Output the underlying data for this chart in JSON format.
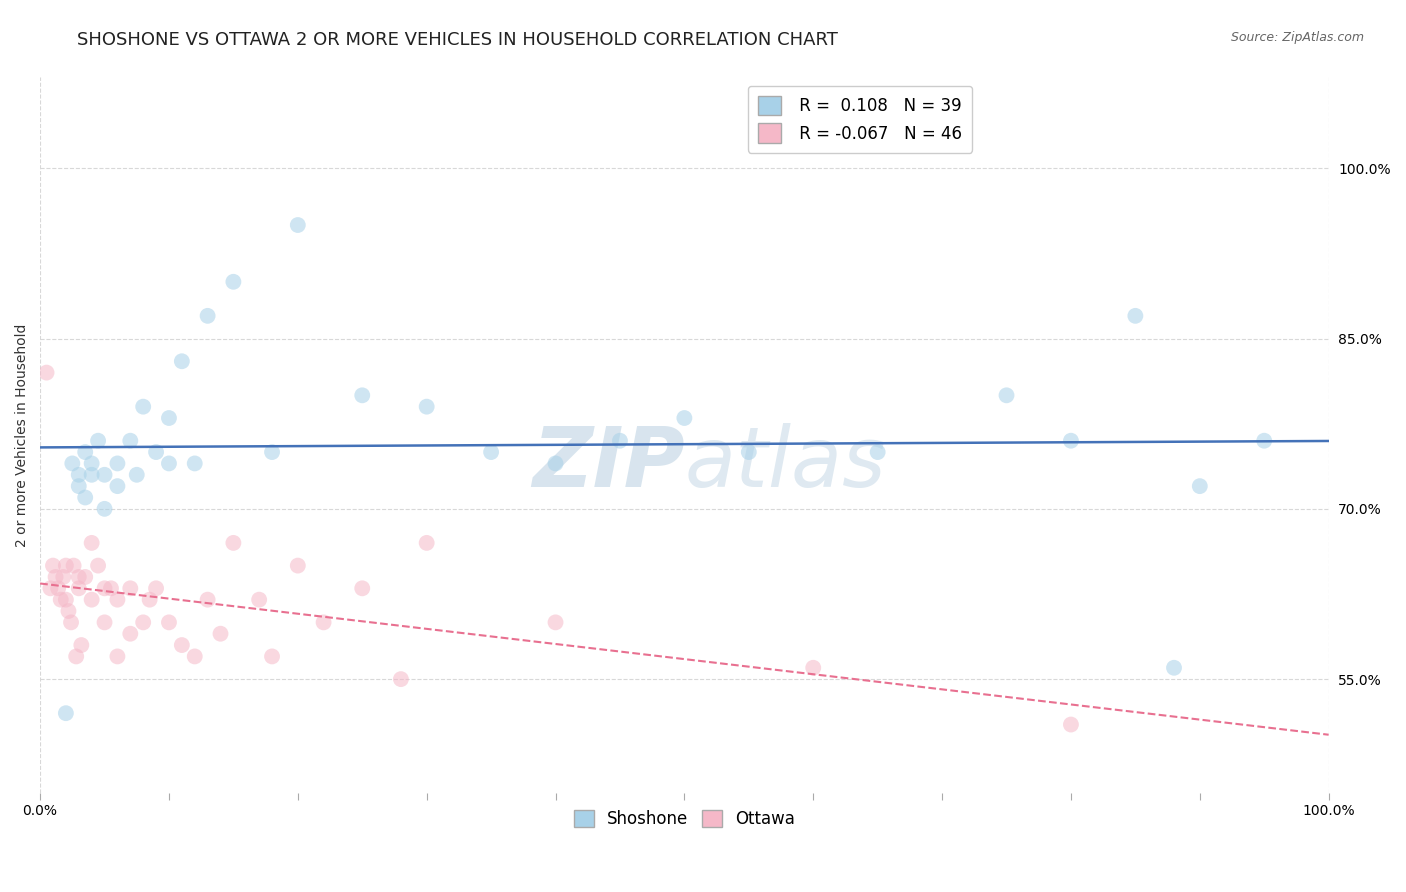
{
  "title": "SHOSHONE VS OTTAWA 2 OR MORE VEHICLES IN HOUSEHOLD CORRELATION CHART",
  "source_text": "Source: ZipAtlas.com",
  "ylabel": "2 or more Vehicles in Household",
  "y_ticks_right": [
    55.0,
    70.0,
    85.0,
    100.0
  ],
  "shoshone_color": "#a8d1e8",
  "ottawa_color": "#f5b8c8",
  "shoshone_line_color": "#4472b8",
  "ottawa_line_color": "#e87090",
  "shoshone_R": 0.108,
  "shoshone_N": 39,
  "ottawa_R": -0.067,
  "ottawa_N": 46,
  "watermark_zip": "ZIP",
  "watermark_atlas": "atlas",
  "watermark_color": "#c8dced",
  "xlim": [
    0,
    100
  ],
  "ylim": [
    45,
    108
  ],
  "grid_color": "#d8d8d8",
  "background_color": "#ffffff",
  "title_fontsize": 13,
  "axis_label_fontsize": 10,
  "tick_fontsize": 10,
  "legend_fontsize": 12,
  "marker_size": 130,
  "marker_alpha": 0.55,
  "shoshone_x": [
    2.0,
    2.5,
    3.0,
    3.0,
    3.5,
    3.5,
    4.0,
    4.0,
    4.5,
    5.0,
    5.0,
    6.0,
    6.0,
    7.0,
    7.5,
    8.0,
    9.0,
    10.0,
    10.0,
    11.0,
    12.0,
    13.0,
    15.0,
    18.0,
    20.0,
    25.0,
    30.0,
    35.0,
    40.0,
    45.0,
    50.0,
    55.0,
    65.0,
    75.0,
    80.0,
    85.0,
    88.0,
    90.0,
    95.0
  ],
  "shoshone_y": [
    52.0,
    74.0,
    73.0,
    72.0,
    75.0,
    71.0,
    73.0,
    74.0,
    76.0,
    73.0,
    70.0,
    74.0,
    72.0,
    76.0,
    73.0,
    79.0,
    75.0,
    78.0,
    74.0,
    83.0,
    74.0,
    87.0,
    90.0,
    75.0,
    95.0,
    80.0,
    79.0,
    75.0,
    74.0,
    76.0,
    78.0,
    75.0,
    75.0,
    80.0,
    76.0,
    87.0,
    56.0,
    72.0,
    76.0
  ],
  "ottawa_x": [
    0.5,
    0.8,
    1.0,
    1.2,
    1.4,
    1.6,
    1.8,
    2.0,
    2.0,
    2.2,
    2.4,
    2.6,
    2.8,
    3.0,
    3.0,
    3.2,
    3.5,
    4.0,
    4.0,
    4.5,
    5.0,
    5.0,
    5.5,
    6.0,
    6.0,
    7.0,
    7.0,
    8.0,
    8.5,
    9.0,
    10.0,
    11.0,
    12.0,
    13.0,
    14.0,
    15.0,
    17.0,
    18.0,
    20.0,
    22.0,
    25.0,
    28.0,
    30.0,
    40.0,
    60.0,
    80.0
  ],
  "ottawa_y": [
    82.0,
    63.0,
    65.0,
    64.0,
    63.0,
    62.0,
    64.0,
    65.0,
    62.0,
    61.0,
    60.0,
    65.0,
    57.0,
    63.0,
    64.0,
    58.0,
    64.0,
    62.0,
    67.0,
    65.0,
    63.0,
    60.0,
    63.0,
    57.0,
    62.0,
    63.0,
    59.0,
    60.0,
    62.0,
    63.0,
    60.0,
    58.0,
    57.0,
    62.0,
    59.0,
    67.0,
    62.0,
    57.0,
    65.0,
    60.0,
    63.0,
    55.0,
    67.0,
    60.0,
    56.0,
    51.0
  ]
}
